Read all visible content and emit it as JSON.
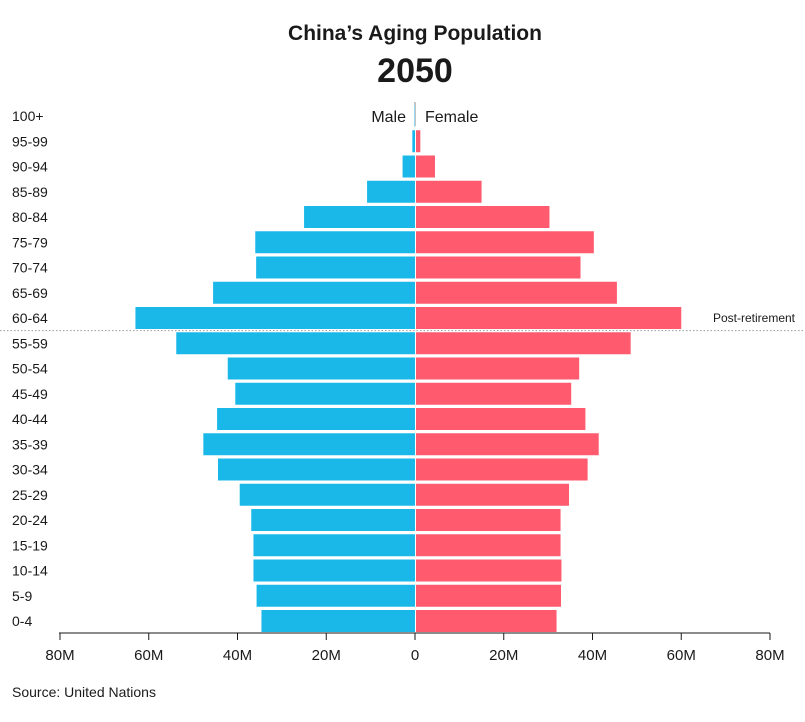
{
  "chart_data": {
    "type": "bar",
    "orientation": "horizontal-population-pyramid",
    "title": "China’s Aging Population",
    "subtitle": "2050",
    "categories": [
      "100+",
      "95-99",
      "90-94",
      "85-89",
      "80-84",
      "75-79",
      "70-74",
      "65-69",
      "60-64",
      "55-59",
      "50-54",
      "45-49",
      "40-44",
      "35-39",
      "30-34",
      "25-29",
      "20-24",
      "15-19",
      "10-14",
      "5-9",
      "0-4"
    ],
    "series": [
      {
        "name": "Male",
        "color": "#1ab8e8",
        "values": [
          0.1,
          0.6,
          2.8,
          10.8,
          25.0,
          36.0,
          35.8,
          45.5,
          63.0,
          53.8,
          42.2,
          40.5,
          44.6,
          47.7,
          44.4,
          39.5,
          36.9,
          36.4,
          36.4,
          35.7,
          34.6
        ]
      },
      {
        "name": "Female",
        "color": "#ff5a6e",
        "values": [
          0.2,
          1.2,
          4.5,
          15.0,
          30.3,
          40.3,
          37.3,
          45.5,
          60.0,
          48.6,
          37.0,
          35.2,
          38.4,
          41.4,
          38.9,
          34.7,
          32.8,
          32.8,
          33.0,
          32.9,
          31.9
        ]
      }
    ],
    "xlim": [
      -80,
      80
    ],
    "xticks": [
      -80,
      -60,
      -40,
      -20,
      0,
      20,
      40,
      60,
      80
    ],
    "xtick_labels": [
      "80M",
      "60M",
      "40M",
      "20M",
      "0",
      "20M",
      "40M",
      "60M",
      "80M"
    ],
    "xlabel": "",
    "ylabel": "",
    "legend": [
      "Male",
      "Female"
    ],
    "legend_placement": "top-center",
    "grid": false,
    "annotation": {
      "text": "Post-retirement",
      "divides_between": [
        "60-64",
        "55-59"
      ]
    },
    "source": "Source: United Nations"
  }
}
